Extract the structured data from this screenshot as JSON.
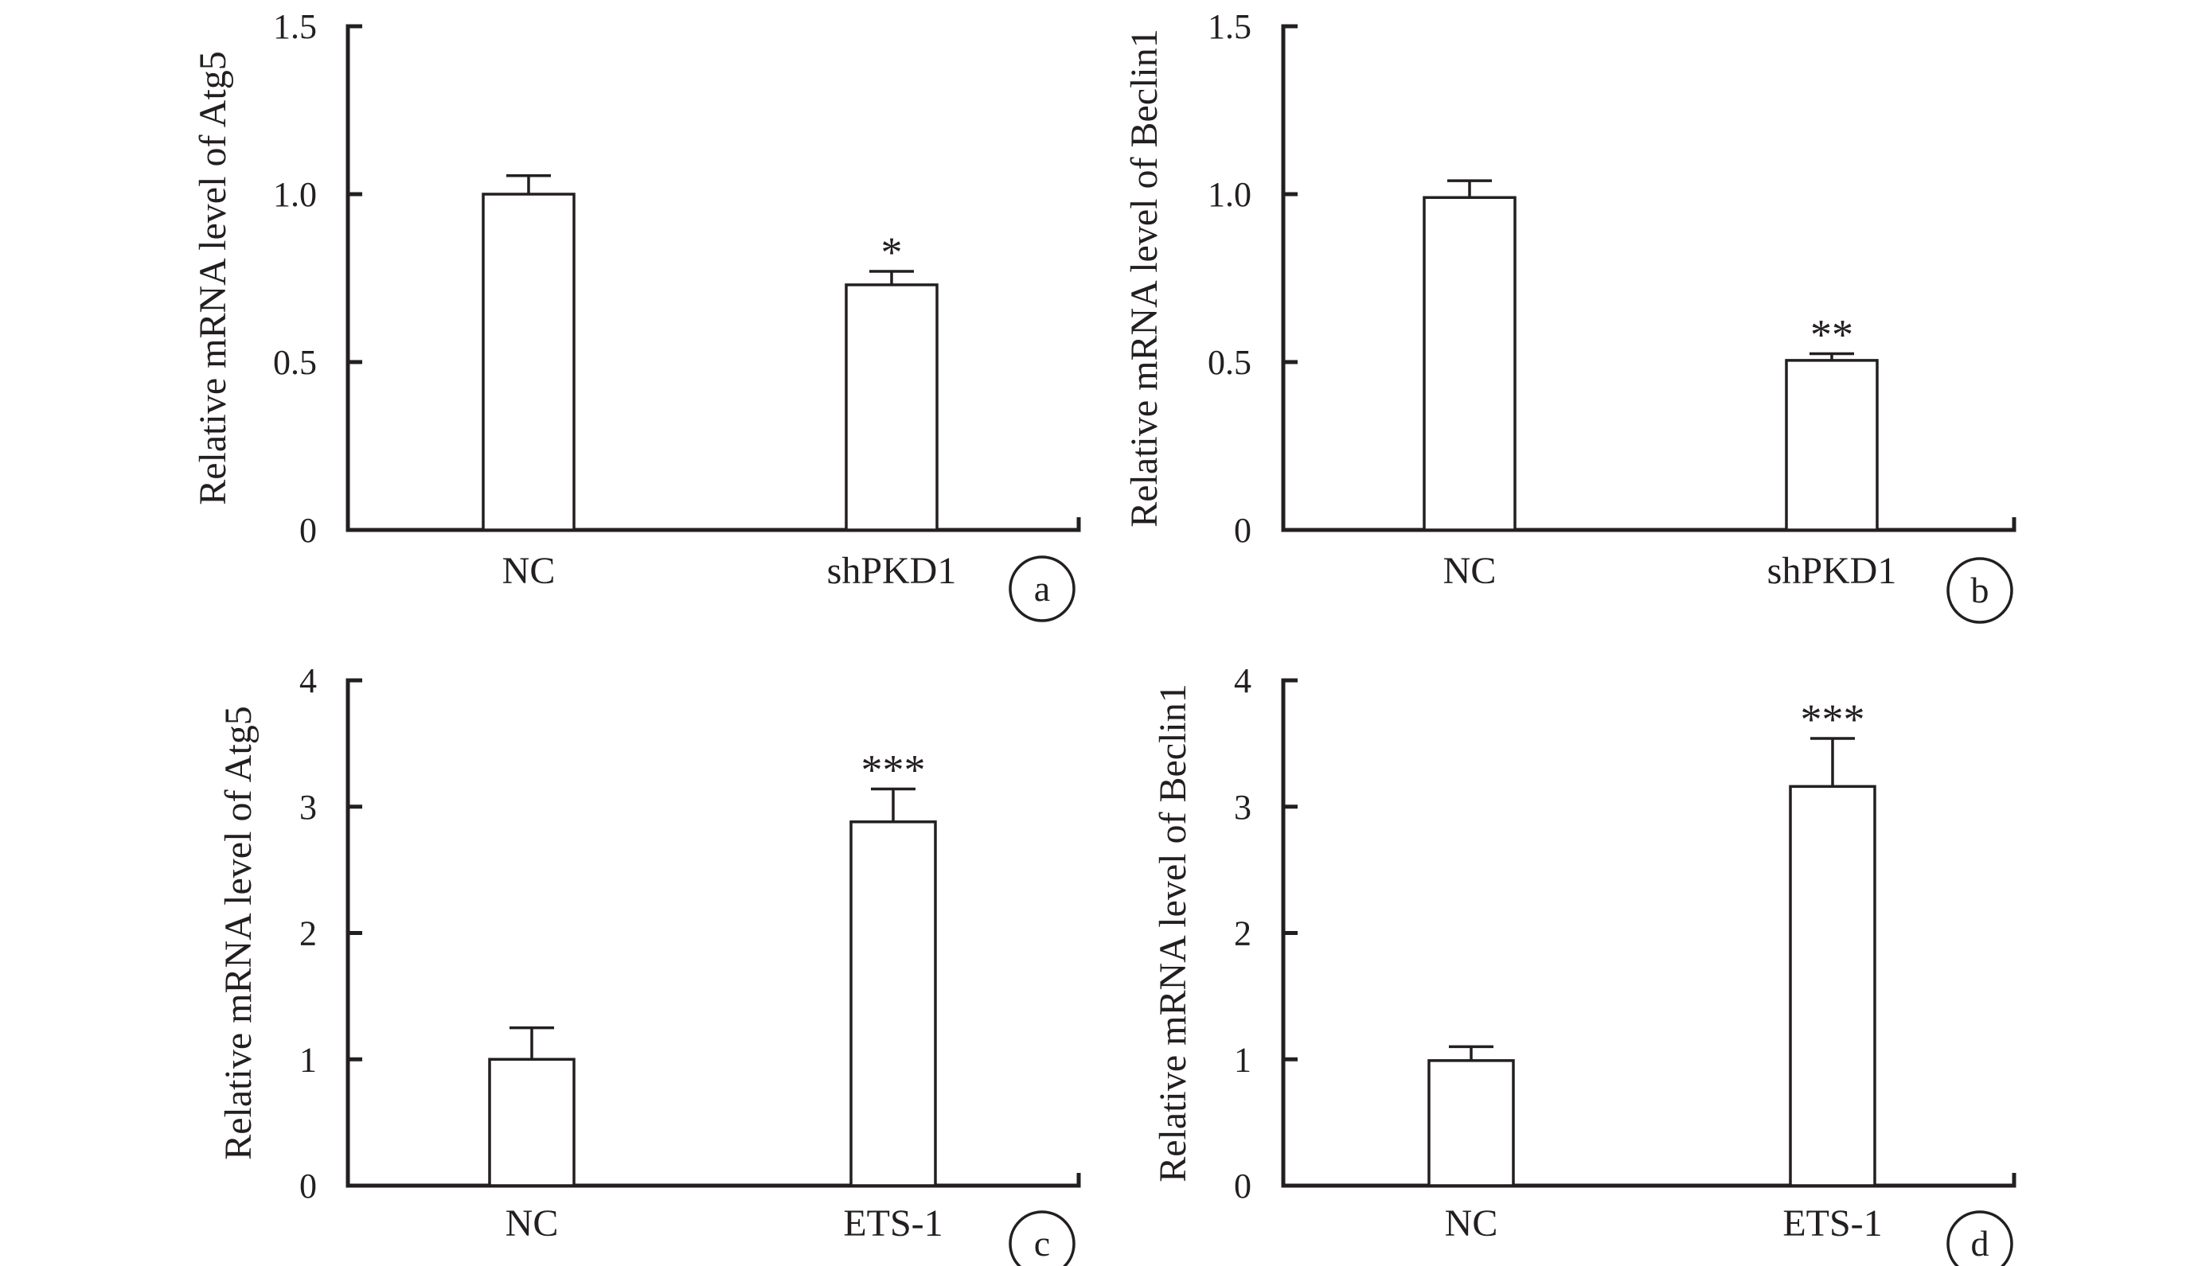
{
  "colors": {
    "ink": "#231f20",
    "bar_fill": "#ffffff"
  },
  "chart_data": [
    {
      "panel": "a",
      "type": "bar",
      "categories": [
        "NC",
        "shPKD1"
      ],
      "values": [
        1.0,
        0.73
      ],
      "errors": [
        0.055,
        0.04
      ],
      "significance": [
        "",
        "*"
      ],
      "title": "",
      "xlabel": "",
      "ylabel": "Relative mRNA level of Atg5",
      "ylim": [
        0,
        1.5
      ],
      "yticks": [
        0,
        0.5,
        1.0,
        1.5
      ],
      "ytick_labels": [
        "0",
        "0.5",
        "1.0",
        "1.5"
      ],
      "grid": false
    },
    {
      "panel": "b",
      "type": "bar",
      "categories": [
        "NC",
        "shPKD1"
      ],
      "values": [
        0.99,
        0.505
      ],
      "errors": [
        0.05,
        0.02
      ],
      "significance": [
        "",
        "**"
      ],
      "title": "",
      "xlabel": "",
      "ylabel": "Relative mRNA level of Beclin1",
      "ylim": [
        0,
        1.5
      ],
      "yticks": [
        0,
        0.5,
        1.0,
        1.5
      ],
      "ytick_labels": [
        "0",
        "0.5",
        "1.0",
        "1.5"
      ],
      "grid": false
    },
    {
      "panel": "c",
      "type": "bar",
      "categories": [
        "NC",
        "ETS-1"
      ],
      "values": [
        1.0,
        2.88
      ],
      "errors": [
        0.25,
        0.26
      ],
      "significance": [
        "",
        "***"
      ],
      "title": "",
      "xlabel": "",
      "ylabel": "Relative mRNA level of Atg5",
      "ylim": [
        0,
        4
      ],
      "yticks": [
        0,
        1,
        2,
        3,
        4
      ],
      "ytick_labels": [
        "0",
        "1",
        "2",
        "3",
        "4"
      ],
      "grid": false
    },
    {
      "panel": "d",
      "type": "bar",
      "categories": [
        "NC",
        "ETS-1"
      ],
      "values": [
        0.99,
        3.16
      ],
      "errors": [
        0.11,
        0.38
      ],
      "significance": [
        "",
        "***"
      ],
      "title": "",
      "xlabel": "",
      "ylabel": "Relative mRNA level of Beclin1",
      "ylim": [
        0,
        4
      ],
      "yticks": [
        0,
        1,
        2,
        3,
        4
      ],
      "ytick_labels": [
        "0",
        "1",
        "2",
        "3",
        "4"
      ],
      "grid": false
    }
  ]
}
